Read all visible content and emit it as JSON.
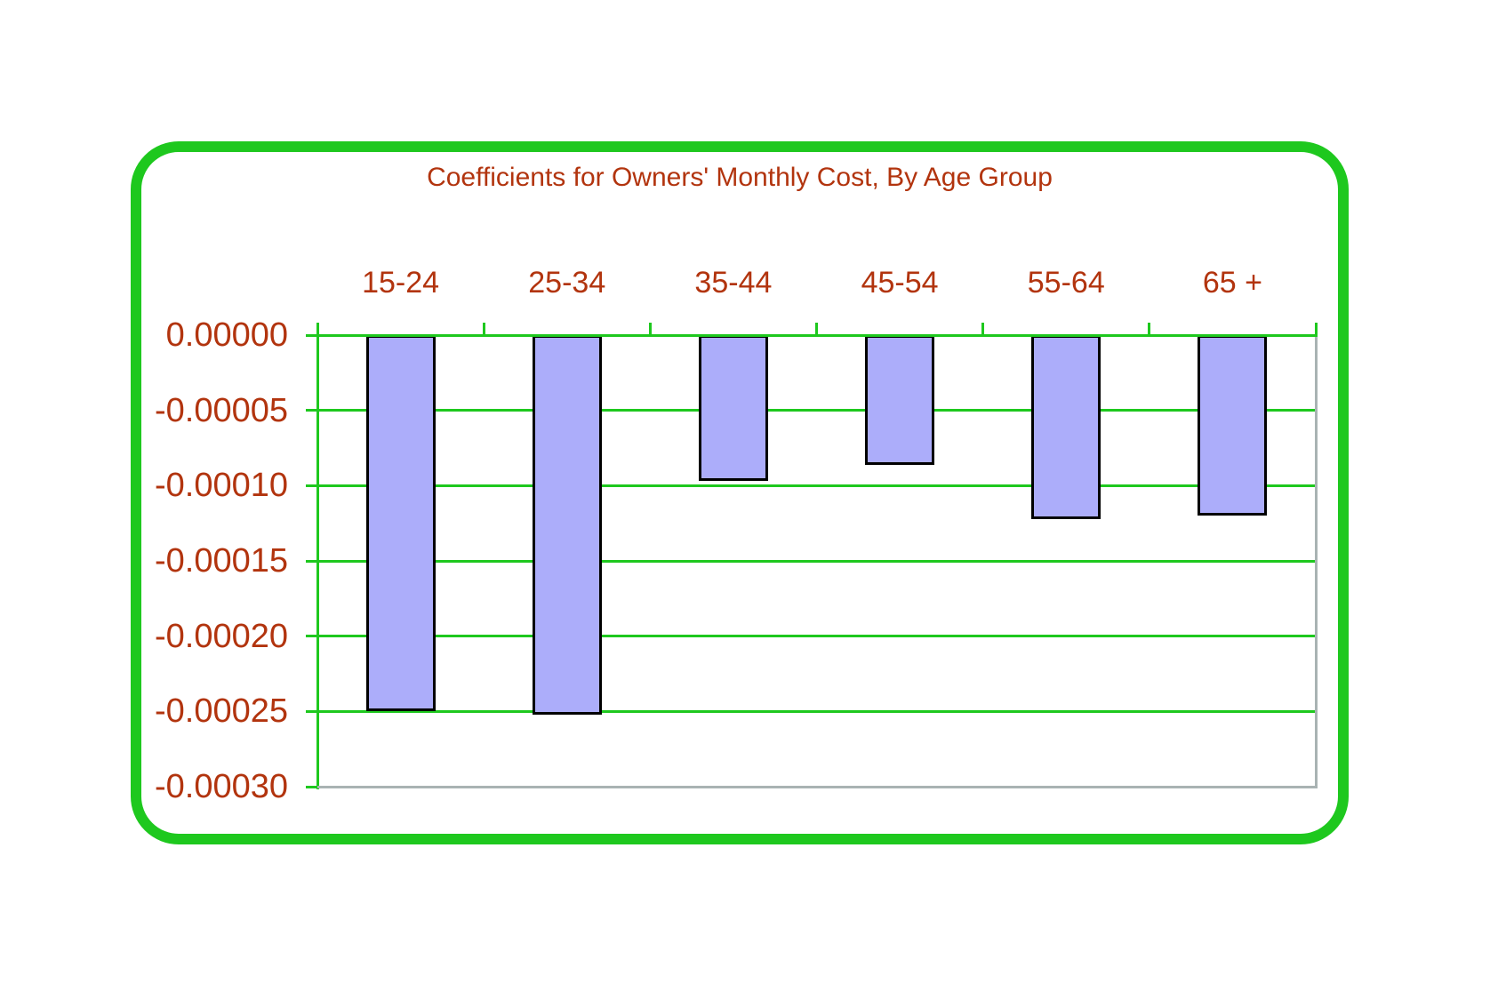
{
  "chart_data": {
    "type": "bar",
    "title": "Coefficients for Owners' Monthly Cost, By Age Group",
    "categories": [
      "15-24",
      "25-34",
      "35-44",
      "45-54",
      "55-64",
      "65 +"
    ],
    "values": [
      -0.00025,
      -0.000252,
      -9.7e-05,
      -8.6e-05,
      -0.000122,
      -0.00012
    ],
    "xlabel": "",
    "ylabel": "",
    "ylim": [
      -0.0003,
      0
    ],
    "ytick_labels": [
      "0.00000",
      "-0.00005",
      "-0.00010",
      "-0.00015",
      "-0.00020",
      "-0.00025",
      "-0.00030"
    ],
    "ytick_values": [
      0,
      -5e-05,
      -0.0001,
      -0.00015,
      -0.0002,
      -0.00025,
      -0.0003
    ],
    "grid": true,
    "legend": false,
    "category_axis_position": "top",
    "colors": {
      "bar_fill": "#ACADFA",
      "bar_border": "#000000",
      "line_green": "#1EC81E",
      "text_red": "#B2340E",
      "frame_gray": "#A9B3B3",
      "card_border": "#1EC81E",
      "background": "#FFFFFF"
    }
  }
}
